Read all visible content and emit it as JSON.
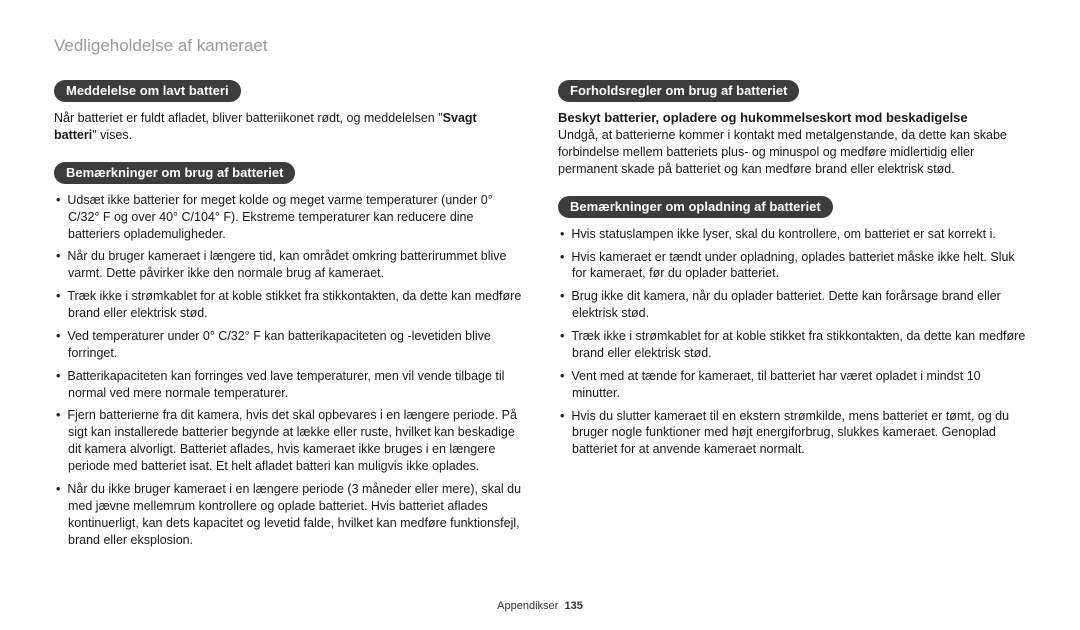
{
  "page": {
    "title": "Vedligeholdelse af kameraet",
    "footer_label": "Appendikser",
    "footer_page": "135"
  },
  "left": {
    "section1": {
      "pill": "Meddelelse om lavt batteri",
      "para_a": "Når batteriet er fuldt afladet, bliver batteriikonet rødt, og meddelelsen \"",
      "para_bold": "Svagt batteri",
      "para_b": "\" vises."
    },
    "section2": {
      "pill": "Bemærkninger om brug af batteriet",
      "bullets": [
        "Udsæt ikke batterier for meget kolde og meget varme temperaturer (under 0° C/32° F og over 40° C/104° F). Ekstreme temperaturer kan reducere dine batteriers oplademuligheder.",
        "Når du bruger kameraet i længere tid, kan området omkring batterirummet blive varmt. Dette påvirker ikke den normale brug af kameraet.",
        "Træk ikke i strømkablet for at koble stikket fra stikkontakten, da dette kan medføre brand eller elektrisk stød.",
        "Ved temperaturer under 0° C/32° F kan batterikapaciteten og -levetiden blive forringet.",
        "Batterikapaciteten kan forringes ved lave temperaturer, men vil vende tilbage til normal ved mere normale temperaturer.",
        "Fjern batterierne fra dit kamera, hvis det skal opbevares i en længere periode. På sigt kan installerede batterier begynde at lække eller ruste, hvilket kan beskadige dit kamera alvorligt. Batteriet aflades, hvis kameraet ikke bruges i en længere periode med batteriet isat. Et helt afladet batteri kan muligvis ikke oplades.",
        "Når du ikke bruger kameraet i en længere periode (3 måneder eller mere), skal du med jævne mellemrum kontrollere og oplade batteriet. Hvis batteriet aflades kontinuerligt, kan dets kapacitet og levetid falde, hvilket kan medføre funktionsfejl, brand eller eksplosion."
      ]
    }
  },
  "right": {
    "section1": {
      "pill": "Forholdsregler om brug af batteriet",
      "sub_heading": "Beskyt batterier, opladere og hukommelseskort mod beskadigelse",
      "para": "Undgå, at batterierne kommer i kontakt med metalgenstande, da dette kan skabe forbindelse mellem batteriets plus- og minuspol og medføre midlertidig eller permanent skade på batteriet og kan medføre brand eller elektrisk stød."
    },
    "section2": {
      "pill": "Bemærkninger om opladning af batteriet",
      "bullets": [
        "Hvis statuslampen ikke lyser, skal du kontrollere, om batteriet er sat korrekt i.",
        "Hvis kameraet er tændt under opladning, oplades batteriet måske ikke helt. Sluk for kameraet, før du oplader batteriet.",
        "Brug ikke dit kamera, når du oplader batteriet. Dette kan forårsage brand eller elektrisk stød.",
        "Træk ikke i strømkablet for at koble stikket fra stikkontakten, da dette kan medføre brand eller elektrisk stød.",
        "Vent med at tænde for kameraet, til batteriet har været opladet i mindst 10 minutter.",
        "Hvis du slutter kameraet til en ekstern strømkilde, mens batteriet er tømt, og du bruger nogle funktioner med højt energiforbrug, slukkes kameraet. Genoplad batteriet for at anvende kameraet normalt."
      ]
    }
  }
}
